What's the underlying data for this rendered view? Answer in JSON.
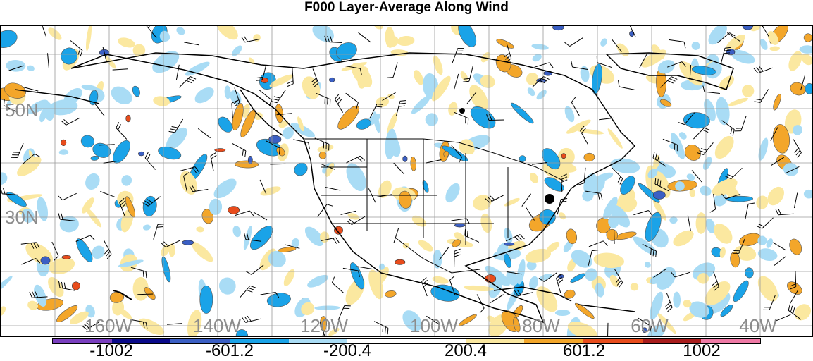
{
  "title": "F000 Layer-Average Along Wind",
  "lat_labels": [
    "50N",
    "30N"
  ],
  "lon_labels": [
    "160W",
    "140W",
    "120W",
    "100W",
    "80W",
    "60W",
    "40W"
  ],
  "colorbar": {
    "colors": [
      "#7a3fbf",
      "#0a0a8a",
      "#3b5fc4",
      "#1aa3e8",
      "#a9dcf5",
      "#ffffff",
      "#ffffff",
      "#fbe8a0",
      "#f3a62a",
      "#e84c1c",
      "#a81c1c",
      "#f07aa6"
    ],
    "tick_labels": [
      "-1002",
      "-601.2",
      "-200.4",
      "200.4",
      "601.2",
      "1002"
    ]
  },
  "markers": [
    "station-dot-north",
    "station-dot-east"
  ],
  "field_colors": {
    "light_blue": "#a9dcf5",
    "blue": "#1aa3e8",
    "dark_blue": "#3b5fc4",
    "light_yellow": "#fbe8a0",
    "orange": "#f3a62a",
    "red": "#e84c1c"
  }
}
